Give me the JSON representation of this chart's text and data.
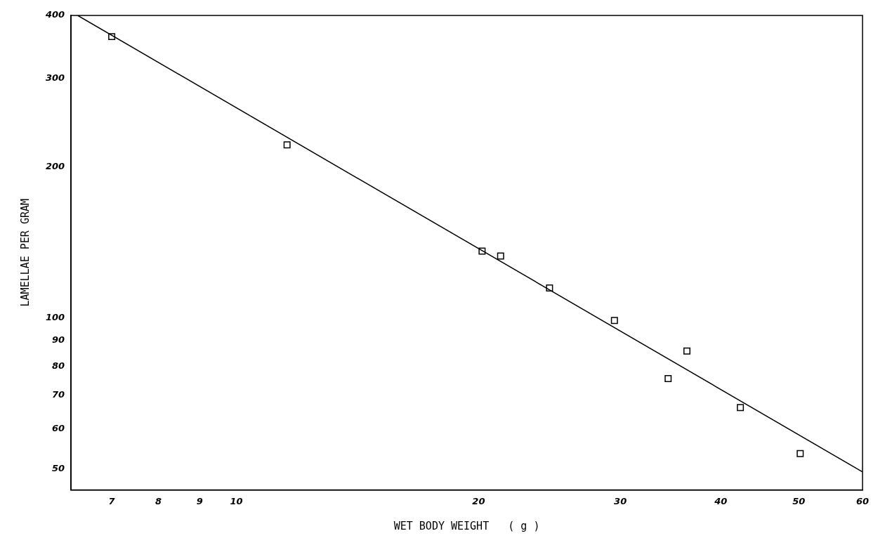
{
  "chart_data": {
    "type": "scatter",
    "xlabel": "WET BODY WEIGHT   ( g )",
    "ylabel": "LAMELLAE PER GRAM",
    "log": "xy",
    "grid": false,
    "legend": false,
    "marker": "square",
    "xlim": [
      6.23,
      60
    ],
    "ylim": [
      45.4,
      400
    ],
    "xticks": [
      7,
      8,
      9,
      10,
      20,
      30,
      40,
      50,
      60
    ],
    "yticks": [
      50,
      60,
      70,
      80,
      90,
      100,
      200,
      300,
      400
    ],
    "series": [
      {
        "color": "#000000",
        "x": [
          7.0,
          11.56,
          20.2,
          21.3,
          24.5,
          29.5,
          34.4,
          36.3,
          42.3,
          50.2
        ],
        "values": [
          363,
          221,
          135.7,
          132.7,
          114.6,
          98.7,
          75.6,
          85.8,
          66.2,
          53.6
        ]
      },
      {
        "type": "line",
        "color": "#000000",
        "marker": "none",
        "line_style": "solid",
        "x": [
          6.35,
          60
        ],
        "values": [
          400,
          49.3
        ]
      }
    ]
  }
}
